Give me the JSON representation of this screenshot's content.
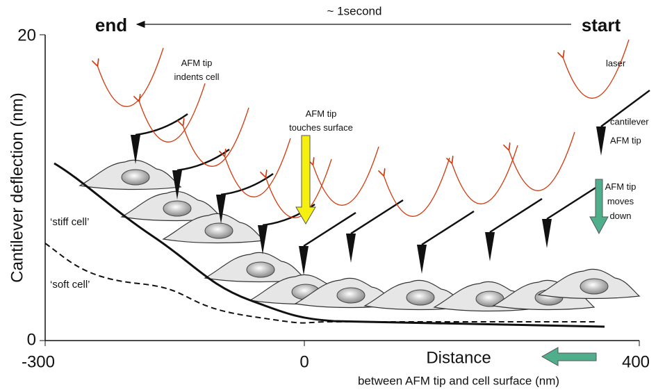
{
  "header": {
    "title_left": "end",
    "title_right": "start",
    "time": "~ 1second"
  },
  "axes": {
    "y_label": "Cantilever deflection (nm)",
    "y_ticks": [
      "20",
      "0"
    ],
    "x_ticks": [
      "-300",
      "0",
      "400"
    ],
    "x_label": "Distance",
    "x_sublabel": "between AFM tip and cell surface (nm)"
  },
  "annotations": [
    {
      "lines": [
        "AFM tip",
        "indents cell"
      ]
    },
    {
      "lines": [
        "AFM tip",
        "touches surface"
      ]
    },
    {
      "lines": [
        "laser"
      ]
    },
    {
      "lines": [
        "cantilever"
      ]
    },
    {
      "lines": [
        "AFM tip"
      ]
    },
    {
      "lines": [
        "AFM tip",
        "moves",
        "down"
      ]
    },
    {
      "lines": [
        "‘stiff cell’"
      ]
    },
    {
      "lines": [
        "‘soft cell’"
      ]
    }
  ]
}
